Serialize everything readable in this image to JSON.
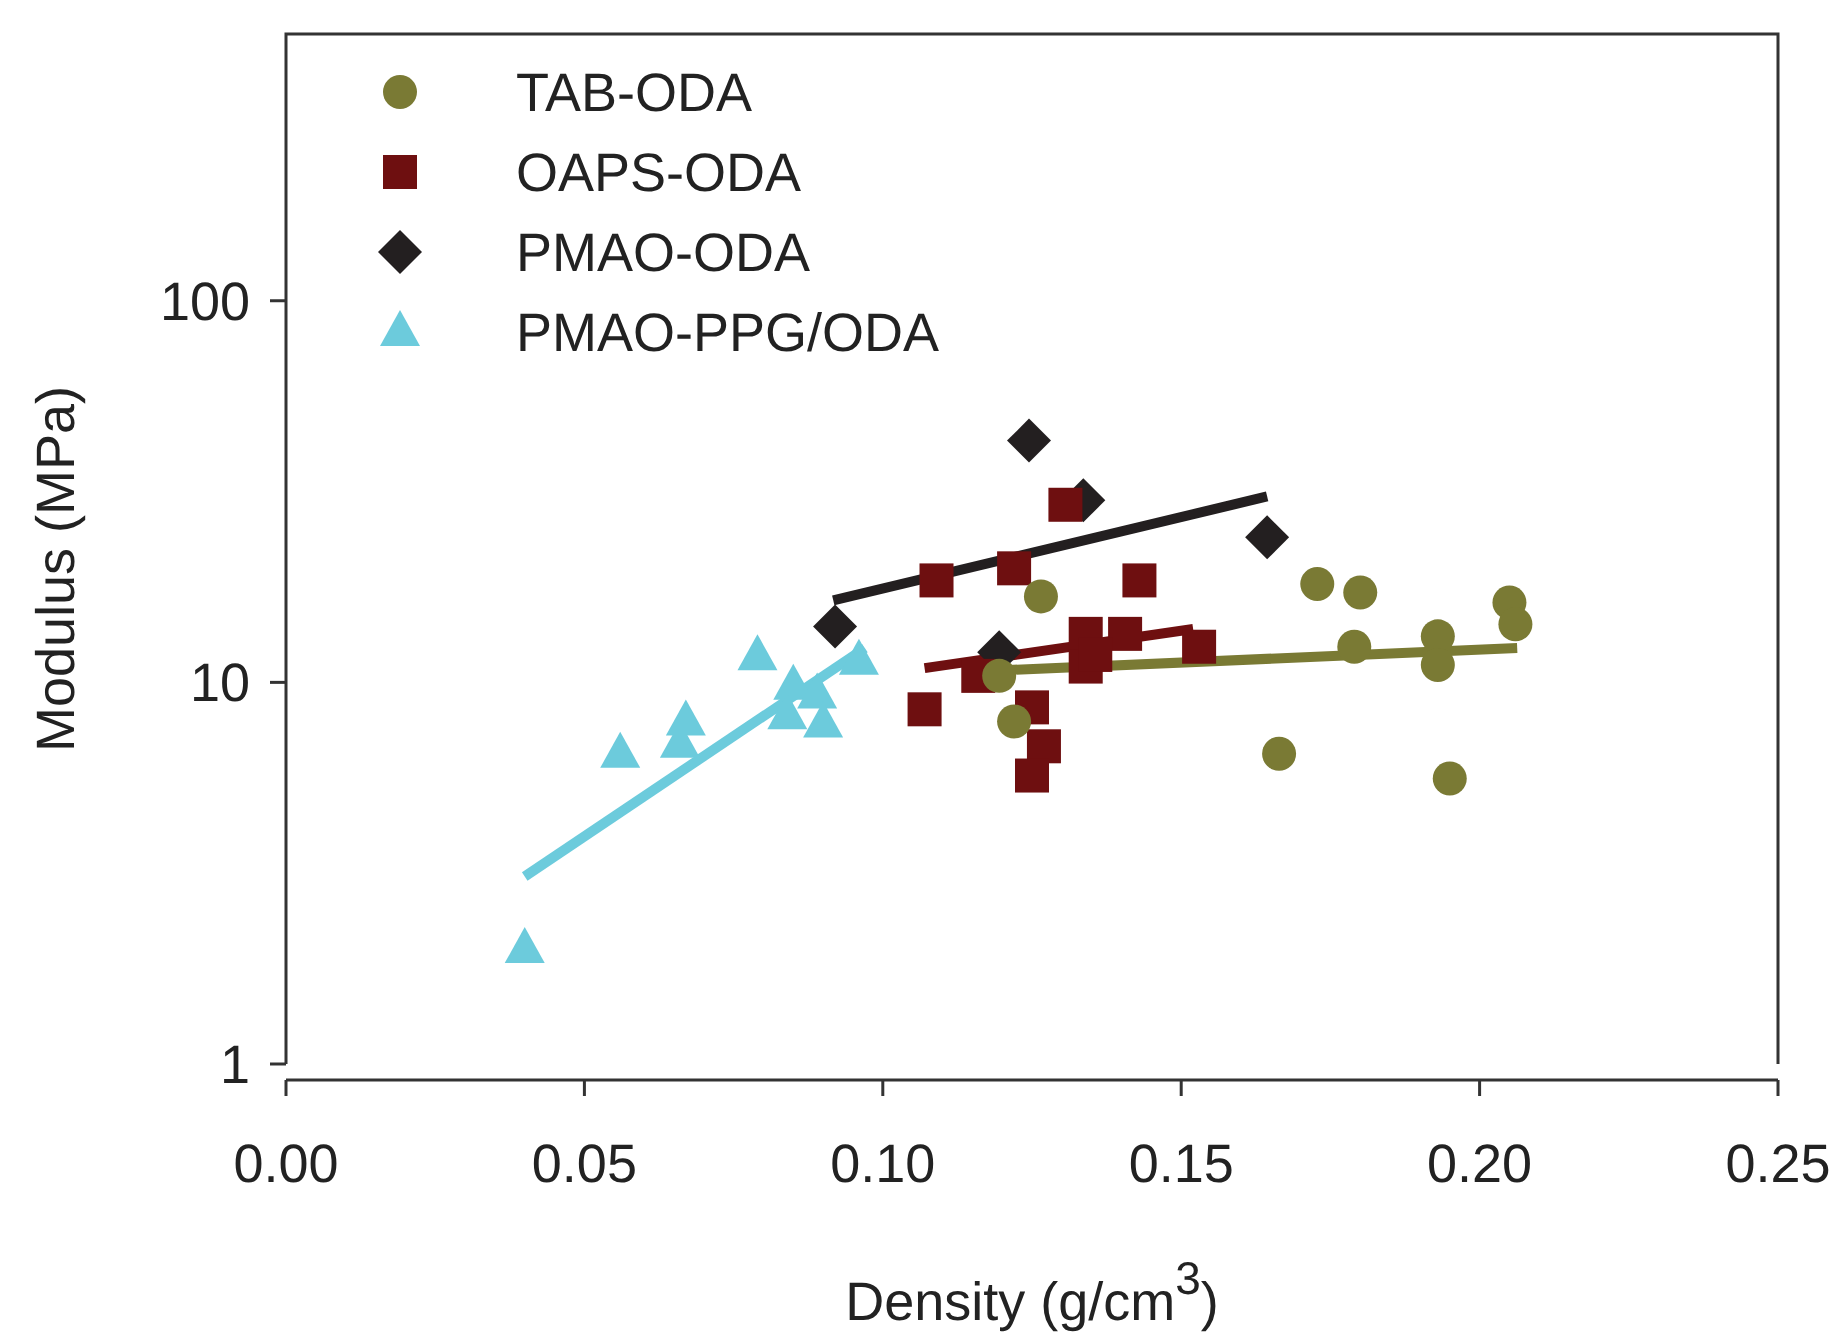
{
  "chart_data": {
    "type": "scatter",
    "xlabel": "Density (g/cm$^{3}$)",
    "ylabel": "Modulus (MPa)",
    "log": "y",
    "xlim": [
      0,
      0.25
    ],
    "ylim": [
      1,
      500
    ],
    "xticks": [
      {
        "value": 0,
        "label": "0.00"
      },
      {
        "value": 0.05,
        "label": "0.05"
      },
      {
        "value": 0.1,
        "label": "0.10"
      },
      {
        "value": 0.15,
        "label": "0.15"
      },
      {
        "value": 0.2,
        "label": "0.20"
      },
      {
        "value": 0.25,
        "label": "0.25"
      }
    ],
    "yticks": [
      1,
      10,
      100
    ],
    "grid": false,
    "legend": "top left",
    "series": [
      {
        "name": "TAB-ODA",
        "type": "scatter",
        "marker": "circle",
        "color": "#7a7a34",
        "x": [
          0.1265,
          0.122,
          0.1195,
          0.1664,
          0.1728,
          0.18,
          0.179,
          0.193,
          0.193,
          0.195,
          0.205,
          0.206
        ],
        "values": [
          16.8,
          7.9,
          10.4,
          6.5,
          18.1,
          17.2,
          12.4,
          13.2,
          11.1,
          5.6,
          16.2,
          14.2
        ]
      },
      {
        "name": "OAPS-ODA",
        "type": "scatter",
        "marker": "square",
        "color": "#6e0f10",
        "x": [
          0.107,
          0.109,
          0.122,
          0.116,
          0.125,
          0.127,
          0.125,
          0.1306,
          0.143,
          0.134,
          0.134,
          0.1406,
          0.1356,
          0.153
        ],
        "values": [
          8.5,
          18.5,
          19.9,
          10.4,
          8.6,
          6.8,
          5.7,
          29.2,
          18.5,
          13.4,
          11.0,
          13.4,
          11.8,
          12.4
        ]
      },
      {
        "name": "PMAO-ODA",
        "type": "scatter",
        "marker": "diamond",
        "color": "#231f20",
        "x": [
          0.1245,
          0.092,
          0.1195,
          0.1336,
          0.1644
        ],
        "values": [
          43,
          14,
          12,
          30,
          24
        ]
      },
      {
        "name": "PMAO-PPG/ODA",
        "type": "scatter",
        "marker": "triangle",
        "color": "#6ccbdc",
        "x": [
          0.04,
          0.056,
          0.066,
          0.067,
          0.079,
          0.085,
          0.084,
          0.089,
          0.09,
          0.096
        ],
        "values": [
          2.0,
          6.5,
          6.9,
          7.9,
          11.7,
          9.8,
          8.2,
          9.3,
          7.8,
          11.4
        ]
      },
      {
        "type": "line",
        "color": "#7a7a34",
        "x": [
          0.1195,
          0.2063
        ],
        "values": [
          10.75,
          12.3
        ]
      },
      {
        "type": "line",
        "color": "#6e0f10",
        "x": [
          0.107,
          0.152
        ],
        "values": [
          10.9,
          13.8
        ]
      },
      {
        "type": "line",
        "color": "#231f20",
        "x": [
          0.0917,
          0.1644
        ],
        "values": [
          16.4,
          30.7
        ]
      },
      {
        "type": "line",
        "color": "#6ccbdc",
        "x": [
          0.04,
          0.097
        ],
        "values": [
          3.1,
          12.3
        ]
      }
    ]
  }
}
